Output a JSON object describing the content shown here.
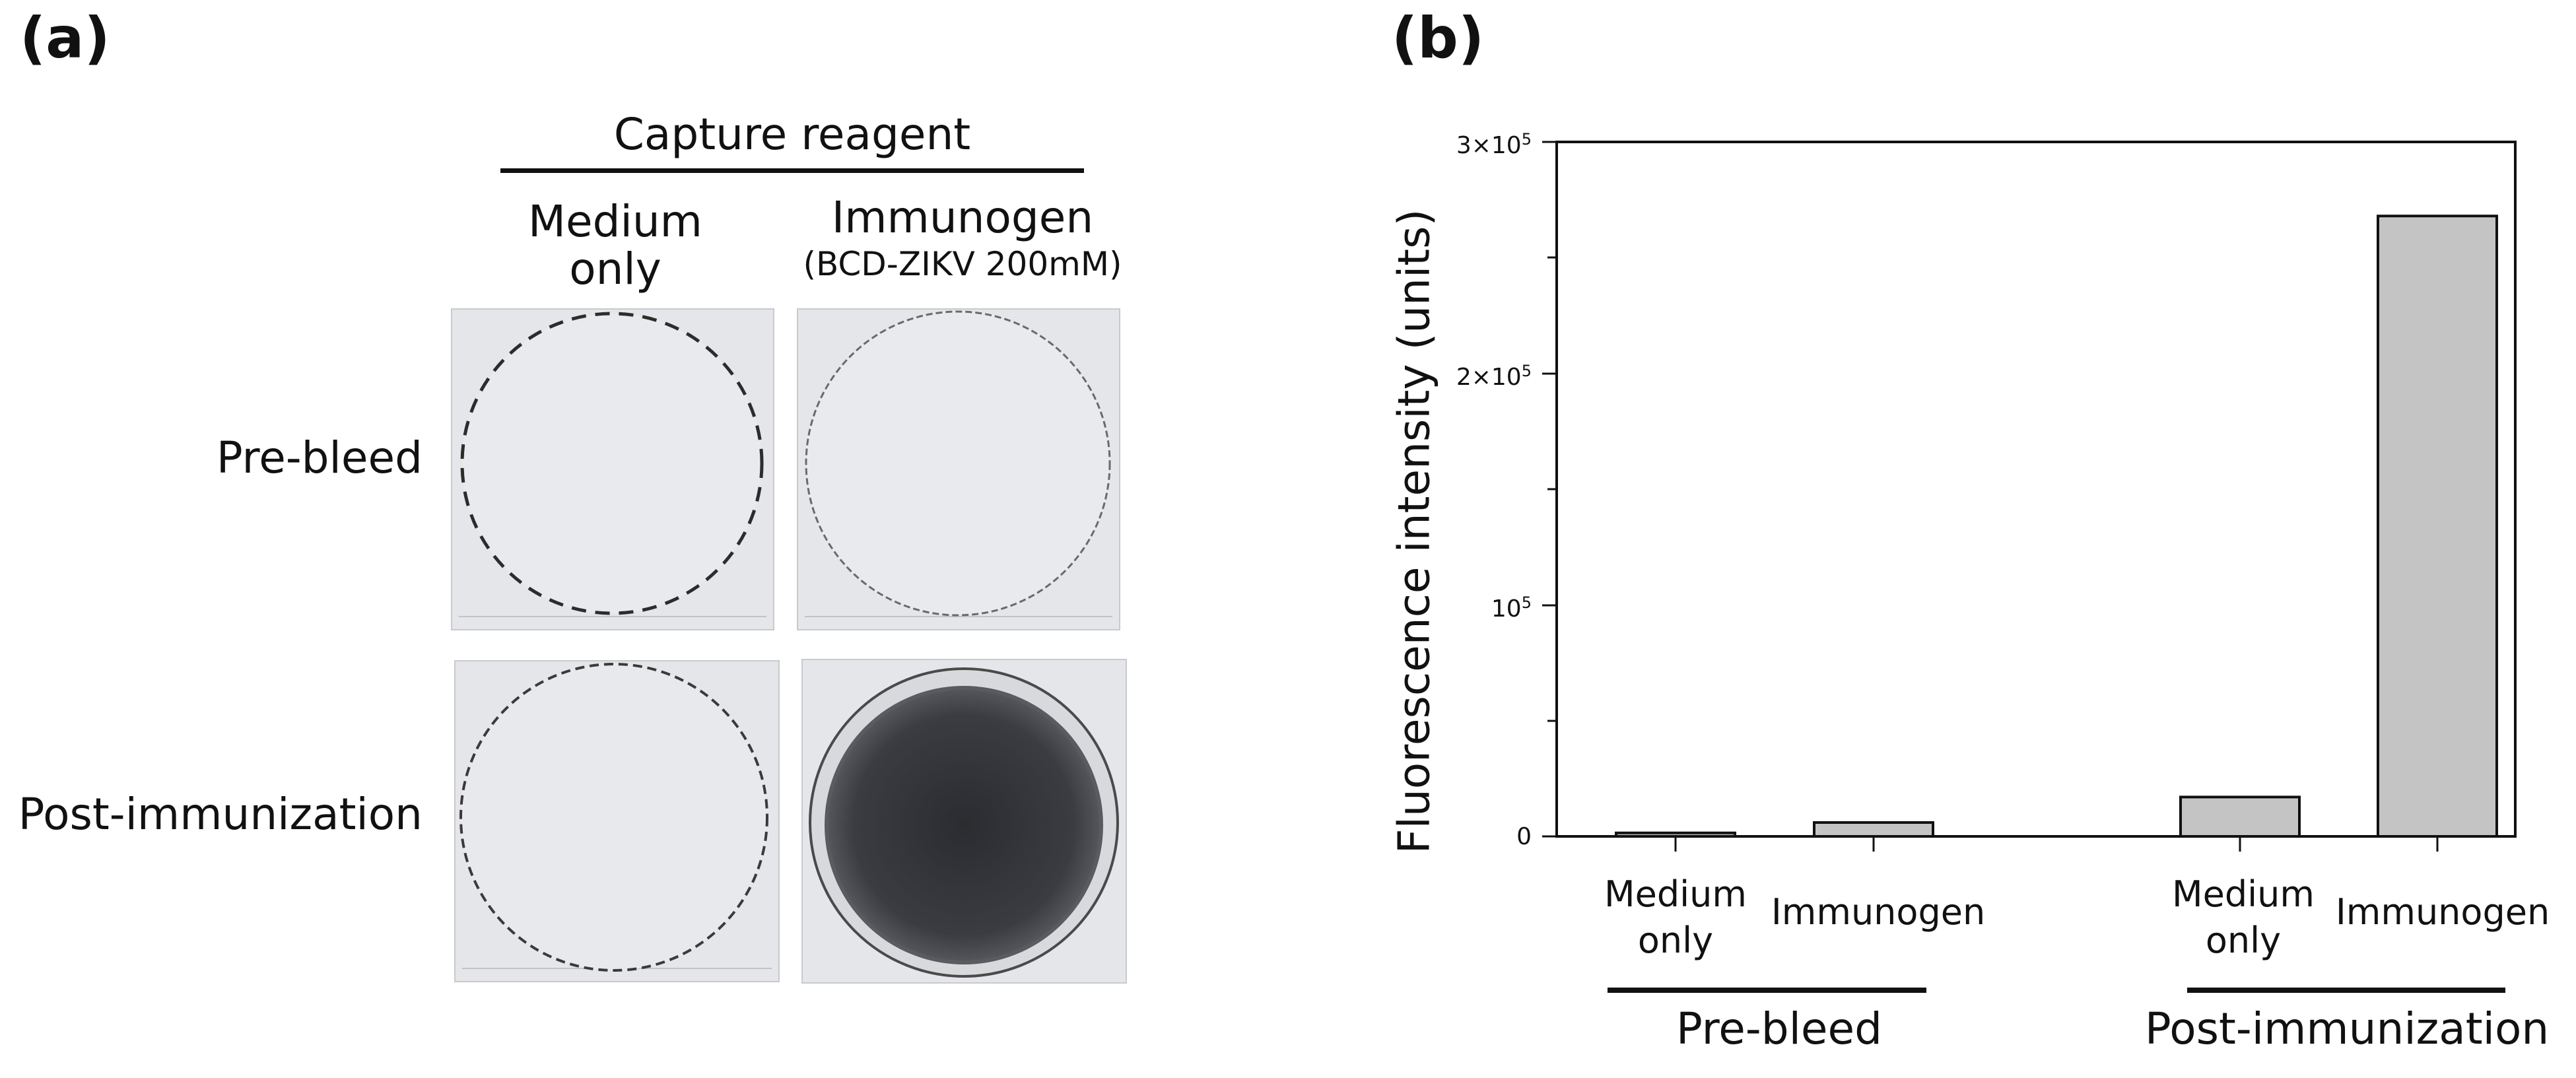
{
  "panel_a": {
    "label": "(a)",
    "header": "Capture reagent",
    "col1": [
      "Medium",
      "only"
    ],
    "col2_title": "Immunogen",
    "col2_sub": "(BCD-ZIKV 200mM)",
    "row1": "Pre-bleed",
    "row2": "Post-immunization",
    "wells": [
      {
        "row": "Pre-bleed",
        "capture": "Medium only",
        "signal": "none"
      },
      {
        "row": "Pre-bleed",
        "capture": "Immunogen",
        "signal": "none"
      },
      {
        "row": "Post-immunization",
        "capture": "Medium only",
        "signal": "none"
      },
      {
        "row": "Post-immunization",
        "capture": "Immunogen",
        "signal": "strong"
      }
    ]
  },
  "panel_b": {
    "label": "(b)",
    "ylabel": "Fluorescence intensity (units)",
    "y_ticks": {
      "t300": {
        "base": "3×10",
        "exp": "5"
      },
      "t200": {
        "base": "2×10",
        "exp": "5"
      },
      "t100": {
        "base": "10",
        "exp": "5"
      },
      "t0": "0"
    },
    "cat_labels": {
      "pre_medium": [
        "Medium",
        "only"
      ],
      "pre_immunogen": "Immunogen",
      "post_medium": [
        "Medium",
        "only"
      ],
      "post_immunogen": "Immunogen"
    },
    "groups": {
      "pre": "Pre-bleed",
      "post": "Post-immunization"
    }
  },
  "chart_data": {
    "type": "bar",
    "categories": [
      "Pre-bleed Medium only",
      "Pre-bleed Immunogen",
      "Post-immunization Medium only",
      "Post-immunization Immunogen"
    ],
    "values": [
      1500,
      6000,
      17000,
      268000
    ],
    "ylabel": "Fluorescence intensity (units)",
    "ylim": [
      0,
      300000
    ],
    "bar_color": "#c4c4c4",
    "grid": false
  }
}
